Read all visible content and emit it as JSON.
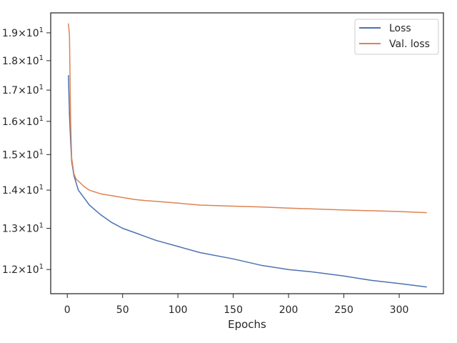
{
  "chart_data": {
    "type": "line",
    "title": "",
    "xlabel": "Epochs",
    "ylabel": "",
    "xlim": [
      -15,
      340
    ],
    "ylim": [
      11.45,
      19.75
    ],
    "y_scale": "log",
    "x_ticks": [
      0,
      50,
      100,
      150,
      200,
      250,
      300
    ],
    "y_ticks": [
      {
        "value": 12,
        "mantissa": "1.2",
        "exp": "1"
      },
      {
        "value": 13,
        "mantissa": "1.3",
        "exp": "1"
      },
      {
        "value": 14,
        "mantissa": "1.4",
        "exp": "1"
      },
      {
        "value": 15,
        "mantissa": "1.5",
        "exp": "1"
      },
      {
        "value": 16,
        "mantissa": "1.6",
        "exp": "1"
      },
      {
        "value": 17,
        "mantissa": "1.7",
        "exp": "1"
      },
      {
        "value": 18,
        "mantissa": "1.8",
        "exp": "1"
      },
      {
        "value": 19,
        "mantissa": "1.9",
        "exp": "1"
      }
    ],
    "grid": false,
    "legend_position": "top-right",
    "series": [
      {
        "name": "Loss",
        "color": "#4c72b0",
        "x": [
          1,
          2,
          3,
          4,
          6,
          8,
          10,
          15,
          20,
          30,
          40,
          50,
          60,
          70,
          80,
          100,
          120,
          150,
          175,
          200,
          220,
          250,
          275,
          300,
          325
        ],
        "y": [
          17.5,
          16.2,
          15.4,
          14.8,
          14.4,
          14.2,
          14.0,
          13.8,
          13.6,
          13.35,
          13.15,
          13.0,
          12.9,
          12.8,
          12.7,
          12.55,
          12.4,
          12.25,
          12.1,
          12.0,
          11.95,
          11.85,
          11.75,
          11.68,
          11.6
        ]
      },
      {
        "name": "Val. loss",
        "color": "#dd8452",
        "x": [
          1,
          2,
          3,
          4,
          6,
          8,
          10,
          15,
          20,
          30,
          40,
          50,
          60,
          70,
          80,
          100,
          120,
          150,
          175,
          200,
          220,
          250,
          275,
          300,
          325
        ],
        "y": [
          19.35,
          18.9,
          16.0,
          14.9,
          14.45,
          14.3,
          14.25,
          14.1,
          14.0,
          13.9,
          13.85,
          13.8,
          13.75,
          13.72,
          13.7,
          13.65,
          13.6,
          13.57,
          13.55,
          13.52,
          13.5,
          13.47,
          13.45,
          13.43,
          13.4
        ]
      }
    ]
  }
}
